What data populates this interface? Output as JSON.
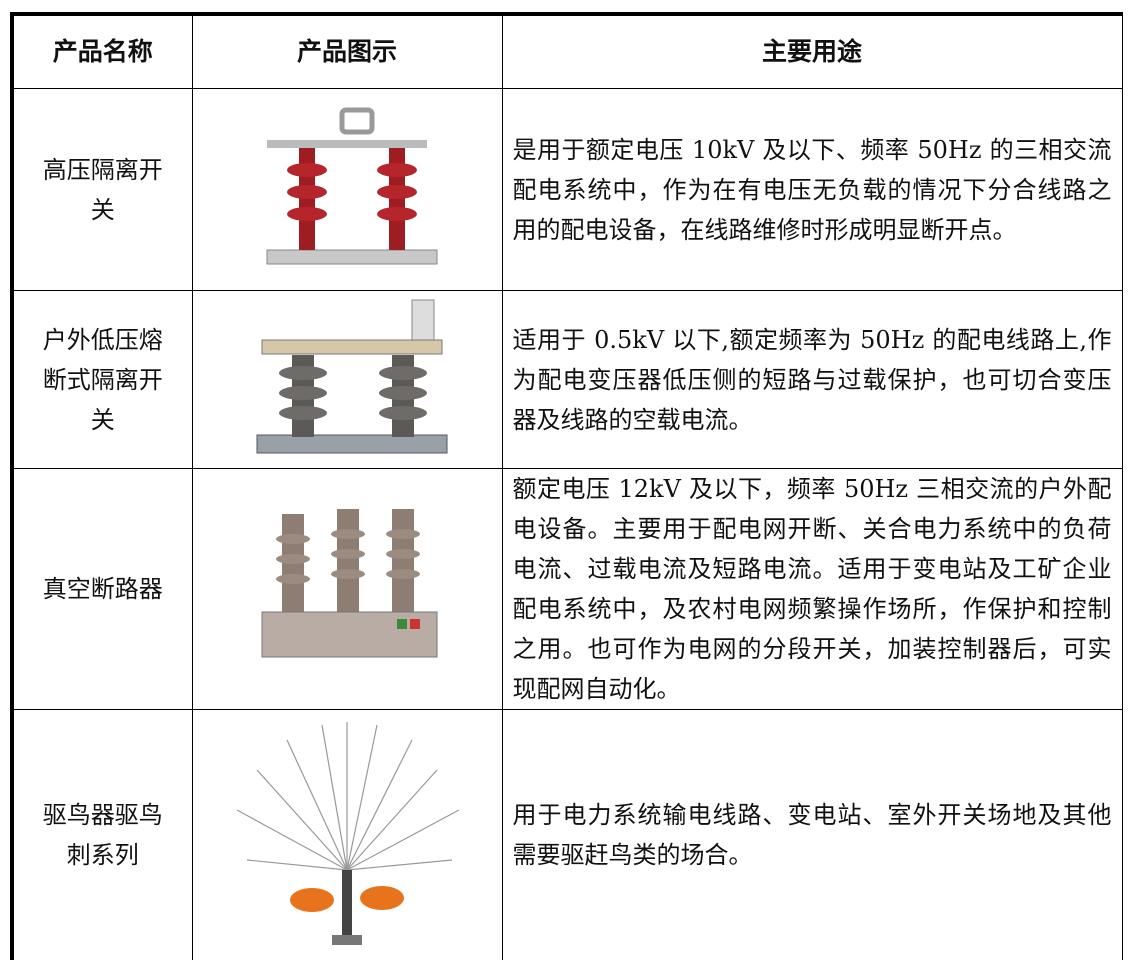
{
  "table": {
    "header": [
      "产品名称",
      "产品图示",
      "主要用途"
    ],
    "rows": [
      {
        "name": "高压隔离开关",
        "description": "是用于额定电压 10kV 及以下、频率 50Hz 的三相交流配电系统中，作为在有电压无负载的情况下分合线路之用的配电设备，在线路维修时形成明显断开点。"
      },
      {
        "name": "户外低压熔断式隔离开关",
        "description": "适用于 0.5kV 以下,额定频率为 50Hz 的配电线路上,作为配电变压器低压侧的短路与过载保护，也可切合变压器及线路的空载电流。"
      },
      {
        "name": "真空断路器",
        "description": "额定电压 12kV 及以下，频率 50Hz 三相交流的户外配电设备。主要用于配电网开断、关合电力系统中的负荷电流、过载电流及短路电流。适用于变电站及工矿企业配电系统中，及农村电网频繁操作场所，作保护和控制之用。也可作为电网的分段开关，加装控制器后，可实现配网自动化。"
      },
      {
        "name": "驱鸟器驱鸟刺系列",
        "description": "用于电力系统输电线路、变电站、室外开关场地及其他需要驱赶鸟类的场合。"
      }
    ]
  }
}
